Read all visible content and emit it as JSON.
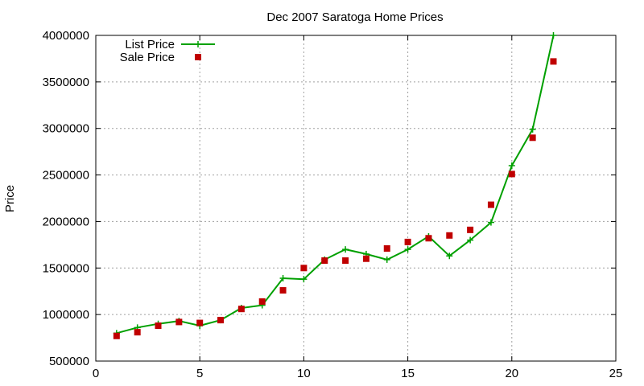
{
  "chart_data": {
    "type": "line",
    "title": "Dec 2007 Saratoga Home Prices",
    "xlabel": "",
    "ylabel": "Price",
    "xlim": [
      0,
      25
    ],
    "ylim": [
      500000,
      4000000
    ],
    "xticks": [
      0,
      5,
      10,
      15,
      20,
      25
    ],
    "xtick_labels": [
      "0",
      "5",
      "10",
      "15",
      "20",
      "25"
    ],
    "yticks": [
      500000,
      1000000,
      1500000,
      2000000,
      2500000,
      3000000,
      3500000,
      4000000
    ],
    "ytick_labels": [
      "500000",
      "1000000",
      "1500000",
      "2000000",
      "2500000",
      "3000000",
      "3500000",
      "4000000"
    ],
    "grid": true,
    "legend_position": "top-left",
    "series": [
      {
        "name": "List Price",
        "style": "line-with-plus-markers",
        "color": "#00a000",
        "x": [
          1,
          2,
          3,
          4,
          5,
          6,
          7,
          8,
          9,
          10,
          11,
          12,
          13,
          14,
          15,
          16,
          17,
          18,
          19,
          20,
          21,
          22
        ],
        "y": [
          800000,
          860000,
          900000,
          930000,
          880000,
          940000,
          1070000,
          1100000,
          1390000,
          1380000,
          1590000,
          1700000,
          1650000,
          1590000,
          1700000,
          1840000,
          1630000,
          1800000,
          1990000,
          2600000,
          2990000,
          4000000
        ]
      },
      {
        "name": "Sale Price",
        "style": "square-markers",
        "color": "#c00000",
        "x": [
          1,
          2,
          3,
          4,
          5,
          6,
          7,
          8,
          9,
          10,
          11,
          12,
          13,
          14,
          15,
          16,
          17,
          18,
          19,
          20,
          21,
          22
        ],
        "y": [
          770000,
          810000,
          880000,
          920000,
          910000,
          940000,
          1060000,
          1140000,
          1260000,
          1500000,
          1580000,
          1580000,
          1600000,
          1710000,
          1780000,
          1820000,
          1850000,
          1910000,
          2180000,
          2510000,
          2900000,
          3720000
        ]
      }
    ]
  }
}
